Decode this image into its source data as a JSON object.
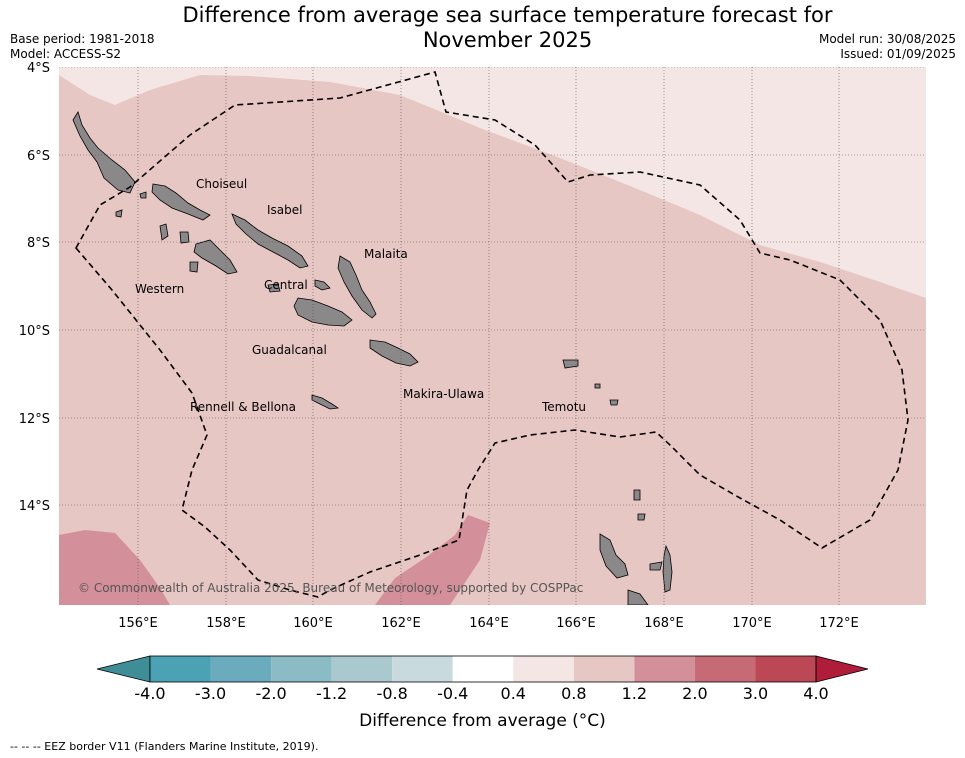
{
  "header": {
    "title_line1": "Difference from average sea surface temperature forecast for",
    "title_line2": "November 2025",
    "base_period": "Base period: 1981-2018",
    "model": "Model: ACCESS-S2",
    "model_run": "Model run: 30/08/2025",
    "issued": "Issued: 01/09/2025"
  },
  "map": {
    "lat_ticks": [
      "4°S",
      "6°S",
      "8°S",
      "10°S",
      "12°S",
      "14°S"
    ],
    "lon_ticks": [
      "156°E",
      "158°E",
      "160°E",
      "162°E",
      "164°E",
      "166°E",
      "168°E",
      "170°E",
      "172°E"
    ],
    "regions": [
      "Choiseul",
      "Isabel",
      "Malaita",
      "Western",
      "Central",
      "Guadalcanal",
      "Makira-Ulawa",
      "Rennell & Bellona",
      "Temotu"
    ],
    "copyright": "© Commonwealth of Australia 2025, Bureau of Meteorology, supported by COSPPac",
    "colors": {
      "anom_0p4_0p8": "#f4e6e4",
      "anom_0p8_1p2": "#e7c7c3",
      "anom_1p2_2p0": "#d4909a",
      "land": "#8a8888",
      "eez": "#000000"
    }
  },
  "colorbar": {
    "title": "Difference from average (°C)",
    "tick_labels": [
      "-4.0",
      "-3.0",
      "-2.0",
      "-1.2",
      "-0.8",
      "-0.4",
      "0.4",
      "0.8",
      "1.2",
      "2.0",
      "3.0",
      "4.0"
    ],
    "colors": [
      "#3f8d97",
      "#4aa2b4",
      "#6aacbd",
      "#8bbbc5",
      "#a9c9ce",
      "#c8dadd",
      "#ffffff",
      "#f4e6e4",
      "#e7c7c3",
      "#d4909a",
      "#c66a76",
      "#bc4855",
      "#b01d3a"
    ]
  },
  "footer": {
    "legend": "--  --  -- EEZ border V11 (Flanders Marine Institute, 2019)."
  }
}
